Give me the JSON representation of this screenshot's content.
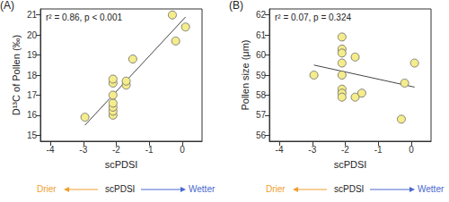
{
  "chart_data": [
    {
      "type": "scatter",
      "title": "(A)",
      "x_label": "scPDSI",
      "y_label": "D¹³C of Pollen (‰)",
      "annotation": "r² = 0.86, p < 0.001",
      "direction_labels": [
        {
          "text": "Drier",
          "color": "#f0a030"
        },
        {
          "text": "Wetter",
          "color": "#4a68d0"
        }
      ],
      "x": [
        -2.95,
        -2.1,
        -2.1,
        -2.1,
        -2.1,
        -2.1,
        -2.1,
        -2.1,
        -1.7,
        -1.7,
        -1.5,
        -0.3,
        -0.2,
        0.1
      ],
      "values": [
        15.9,
        16.0,
        16.2,
        16.4,
        16.6,
        17.0,
        17.6,
        17.8,
        17.5,
        17.7,
        18.8,
        21.0,
        19.7,
        20.4
      ],
      "fit_line": {
        "x": [
          -2.95,
          0.1
        ],
        "y": [
          15.5,
          20.9
        ]
      },
      "color": "#f5ec8c",
      "marker": "circle",
      "xlim": [
        -4.3,
        0.6
      ],
      "xticks": [
        -4,
        -3,
        -2,
        -1,
        0
      ],
      "ylim": [
        14.7,
        21.3
      ],
      "yticks": [
        15,
        16,
        17,
        18,
        19,
        20,
        21
      ],
      "grid": false
    },
    {
      "type": "scatter",
      "title": "(B)",
      "x_label": "scPDSI",
      "y_label": "Pollen size (μm)",
      "annotation": "r² = 0.07, p = 0.324",
      "direction_labels": [
        {
          "text": "Drier",
          "color": "#f0a030"
        },
        {
          "text": "Wetter",
          "color": "#4a68d0"
        }
      ],
      "x": [
        -2.95,
        -2.1,
        -2.1,
        -2.1,
        -2.1,
        -2.1,
        -2.1,
        -2.1,
        -2.1,
        -1.7,
        -1.7,
        -1.5,
        -0.3,
        -0.2,
        0.1
      ],
      "values": [
        59.0,
        60.9,
        60.3,
        60.1,
        59.6,
        59.0,
        58.3,
        58.1,
        57.9,
        59.9,
        57.9,
        58.1,
        56.8,
        58.6,
        59.6
      ],
      "fit_line": {
        "x": [
          -2.95,
          0.1
        ],
        "y": [
          59.5,
          58.4
        ]
      },
      "color": "#f5ec8c",
      "marker": "circle",
      "xlim": [
        -4.3,
        0.6
      ],
      "xticks": [
        -4,
        -3,
        -2,
        -1,
        0
      ],
      "ylim": [
        55.7,
        62.3
      ],
      "yticks": [
        56,
        57,
        58,
        59,
        60,
        61,
        62
      ],
      "grid": false
    }
  ]
}
